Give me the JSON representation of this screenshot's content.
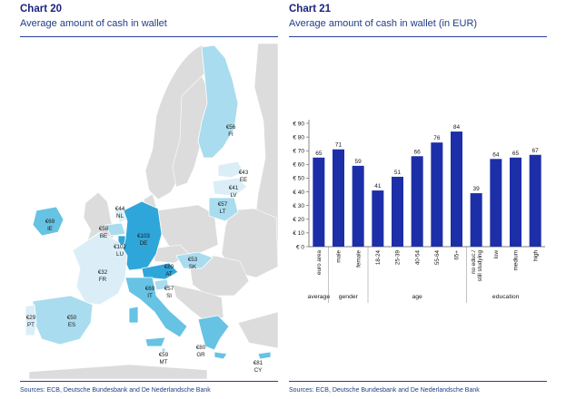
{
  "left": {
    "chart_number": "Chart 20",
    "title": "Average amount of cash in wallet",
    "source": "Sources: ECB, Deutsche Bundesbank and De Nederlandsche Bank"
  },
  "right": {
    "chart_number": "Chart 21",
    "title": "Average amount of cash in wallet (in EUR)",
    "source": "Sources: ECB, Deutsche Bundesbank and De Nederlandsche Bank"
  },
  "colors": {
    "bar": "#1c2fa8",
    "land_grey": "#dcdcdc",
    "light": "#dbeef7",
    "mid": "#a9dcef",
    "strong": "#66c3e4",
    "darkest": "#2fa6d9"
  },
  "chart_data": [
    {
      "type": "map",
      "countries": [
        {
          "code": "FI",
          "value": "€56",
          "shade": "mid"
        },
        {
          "code": "EE",
          "value": "€43",
          "shade": "light"
        },
        {
          "code": "LV",
          "value": "€41",
          "shade": "light"
        },
        {
          "code": "LT",
          "value": "€57",
          "shade": "mid"
        },
        {
          "code": "IE",
          "value": "€69",
          "shade": "strong"
        },
        {
          "code": "NL",
          "value": "€44",
          "shade": "light"
        },
        {
          "code": "BE",
          "value": "€58",
          "shade": "mid"
        },
        {
          "code": "DE",
          "value": "€103",
          "shade": "darkest"
        },
        {
          "code": "LU",
          "value": "€102",
          "shade": "darkest"
        },
        {
          "code": "FR",
          "value": "€32",
          "shade": "light"
        },
        {
          "code": "SK",
          "value": "€53",
          "shade": "mid"
        },
        {
          "code": "AT",
          "value": "€89",
          "shade": "darkest"
        },
        {
          "code": "SI",
          "value": "€57",
          "shade": "mid"
        },
        {
          "code": "IT",
          "value": "€69",
          "shade": "strong"
        },
        {
          "code": "ES",
          "value": "€50",
          "shade": "mid"
        },
        {
          "code": "PT",
          "value": "€29",
          "shade": "light"
        },
        {
          "code": "MT",
          "value": "€59",
          "shade": "mid"
        },
        {
          "code": "GR",
          "value": "€80",
          "shade": "strong"
        },
        {
          "code": "CY",
          "value": "€81",
          "shade": "strong"
        }
      ]
    },
    {
      "type": "bar",
      "ylim": [
        0,
        90
      ],
      "yticks": [
        0,
        10,
        20,
        30,
        40,
        50,
        60,
        70,
        80,
        90
      ],
      "ytick_labels": [
        "€ 0",
        "€ 10",
        "€ 20",
        "€ 30",
        "€ 40",
        "€ 50",
        "€ 60",
        "€ 70",
        "€ 80",
        "€ 90"
      ],
      "groups": [
        {
          "label": "average",
          "categories": [
            "euro area"
          ],
          "values": [
            65
          ]
        },
        {
          "label": "gender",
          "categories": [
            "male",
            "female"
          ],
          "values": [
            71,
            59
          ]
        },
        {
          "label": "age",
          "categories": [
            "18-24",
            "25-39",
            "40-54",
            "55-64",
            "65+"
          ],
          "values": [
            41,
            51,
            66,
            76,
            84
          ]
        },
        {
          "label": "education",
          "categories": [
            "no educ./ still studying",
            "low",
            "medium",
            "high"
          ],
          "values": [
            39,
            64,
            65,
            67
          ]
        }
      ]
    }
  ]
}
